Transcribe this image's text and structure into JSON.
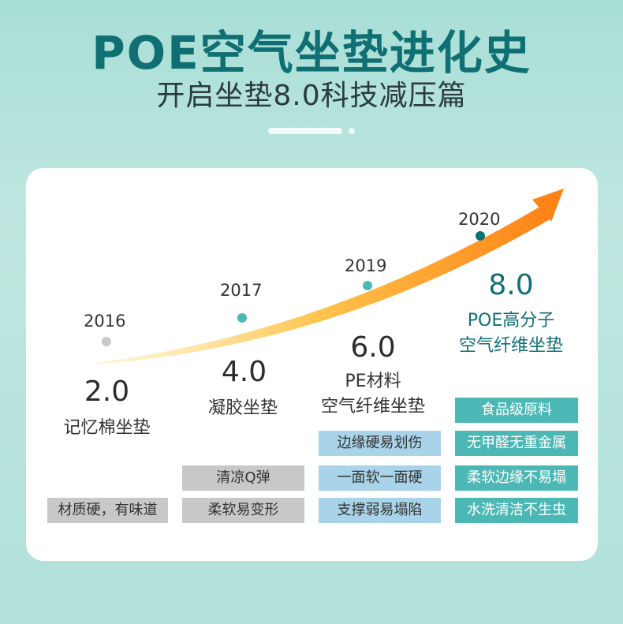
{
  "header": {
    "title": "POE空气坐垫进化史",
    "subtitle": "开启坐垫8.0科技减压篇"
  },
  "timeline": [
    {
      "year": "2016",
      "version": "2.0",
      "name_lines": [
        "记忆棉坐垫"
      ],
      "tags": [
        "材质硬，有味道"
      ]
    },
    {
      "year": "2017",
      "version": "4.0",
      "name_lines": [
        "凝胶坐垫"
      ],
      "tags": [
        "清凉Q弹",
        "柔软易变形"
      ]
    },
    {
      "year": "2019",
      "version": "6.0",
      "name_lines": [
        "PE材料",
        "空气纤维坐垫"
      ],
      "tags": [
        "边缘硬易划伤",
        "一面软一面硬",
        "支撑弱易塌陷"
      ]
    },
    {
      "year": "2020",
      "version": "8.0",
      "name_lines": [
        "POE高分子",
        "空气纤维坐垫"
      ],
      "tags": [
        "食品级原料",
        "无甲醛无重金属",
        "柔软边缘不易塌",
        "水洗清洁不生虫"
      ]
    }
  ],
  "colors": {
    "accent": "#0f6f73",
    "arrow_start": "#ffe08a",
    "arrow_end": "#ff8a1a",
    "tag_gray": "#c8c8c8",
    "tag_blue": "#a9d3e8",
    "tag_teal": "#4cb8b5"
  }
}
